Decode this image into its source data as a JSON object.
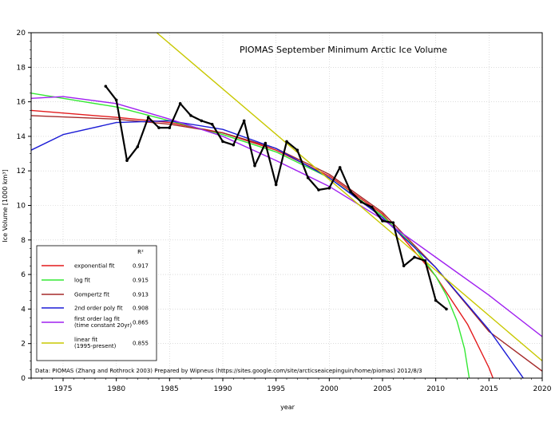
{
  "chart_data": {
    "type": "line",
    "title": "PIOMAS September Minimum Arctic Ice Volume",
    "xlabel": "year",
    "ylabel": "Ice Volume [1000 km³]",
    "xlim": [
      1972,
      2020
    ],
    "ylim": [
      0,
      20
    ],
    "grid": true,
    "x_ticks": [
      "1975",
      "1980",
      "1985",
      "1990",
      "1995",
      "2000",
      "2005",
      "2010",
      "2015",
      "2020"
    ],
    "y_ticks": [
      "0",
      "2",
      "4",
      "6",
      "8",
      "10",
      "12",
      "14",
      "16",
      "18",
      "20"
    ],
    "legend_header": "R²",
    "legend_position": "bottom-left",
    "credit": "Data: PIOMAS (Zhang and Rothrock 2003)     Prepared by Wipneus (https://sites.google.com/site/arcticseaicepinguin/home/piomas)     2012/8/3",
    "observed": {
      "color": "#000000",
      "x": [
        1979,
        1980,
        1981,
        1982,
        1983,
        1984,
        1985,
        1986,
        1987,
        1988,
        1989,
        1990,
        1991,
        1992,
        1993,
        1994,
        1995,
        1996,
        1997,
        1998,
        1999,
        2000,
        2001,
        2002,
        2003,
        2004,
        2005,
        2006,
        2007,
        2008,
        2009,
        2010,
        2011
      ],
      "y": [
        16.9,
        16.1,
        12.6,
        13.4,
        15.1,
        14.5,
        14.5,
        15.9,
        15.2,
        14.9,
        14.7,
        13.7,
        13.5,
        14.9,
        12.3,
        13.6,
        11.2,
        13.7,
        13.2,
        11.6,
        10.9,
        11.0,
        12.2,
        10.8,
        10.2,
        9.9,
        9.1,
        9.0,
        6.5,
        7.0,
        6.8,
        4.5,
        4.0
      ]
    },
    "series": [
      {
        "name": "exponential fit",
        "r2": "0.917",
        "color": "#e31a1c",
        "x": [
          1972,
          1980,
          1985,
          1990,
          1995,
          2000,
          2005,
          2010,
          2013,
          2015,
          2016
        ],
        "y": [
          15.5,
          15.1,
          14.8,
          14.2,
          13.2,
          11.7,
          9.5,
          5.9,
          3.1,
          0.6,
          -1.0
        ]
      },
      {
        "name": "log fit",
        "r2": "0.915",
        "color": "#33e833",
        "x": [
          1972,
          1980,
          1985,
          1990,
          1995,
          2000,
          2005,
          2008,
          2010,
          2011,
          2012,
          2012.7,
          2013.2
        ],
        "y": [
          16.5,
          15.7,
          14.9,
          14.1,
          13.1,
          11.6,
          9.4,
          7.6,
          5.9,
          4.8,
          3.3,
          1.7,
          -0.2
        ]
      },
      {
        "name": "Gompertz fit",
        "r2": "0.913",
        "color": "#a52a2a",
        "x": [
          1972,
          1980,
          1985,
          1990,
          1995,
          2000,
          2005,
          2010,
          2015,
          2020
        ],
        "y": [
          15.2,
          15.0,
          14.7,
          14.2,
          13.3,
          11.8,
          9.6,
          6.4,
          2.7,
          0.4
        ]
      },
      {
        "name": "2nd order poly fit",
        "r2": "0.908",
        "color": "#1c1cd6",
        "x": [
          1972,
          1975,
          1980,
          1985,
          1990,
          1995,
          2000,
          2005,
          2010,
          2015,
          2018,
          2019
        ],
        "y": [
          13.2,
          14.1,
          14.8,
          14.9,
          14.4,
          13.3,
          11.6,
          9.3,
          6.4,
          2.8,
          0.2,
          -0.7
        ]
      },
      {
        "name": "first order lag fit (time constant 20yr)",
        "lines": [
          "first order lag fit",
          "(time constant 20yr)"
        ],
        "r2": "0.865",
        "color": "#a020f0",
        "x": [
          1972,
          1975,
          1980,
          1985,
          1990,
          1995,
          2000,
          2005,
          2010,
          2015,
          2020
        ],
        "y": [
          16.2,
          16.3,
          15.9,
          15.0,
          14.0,
          12.6,
          11.1,
          9.2,
          7.0,
          4.8,
          2.4
        ]
      },
      {
        "name": "linear fit (1995-present)",
        "lines": [
          "linear fit",
          "(1995-present)"
        ],
        "r2": "0.855",
        "color": "#c8c800",
        "x": [
          1983.8,
          2020
        ],
        "y": [
          20.0,
          1.0
        ]
      }
    ]
  }
}
